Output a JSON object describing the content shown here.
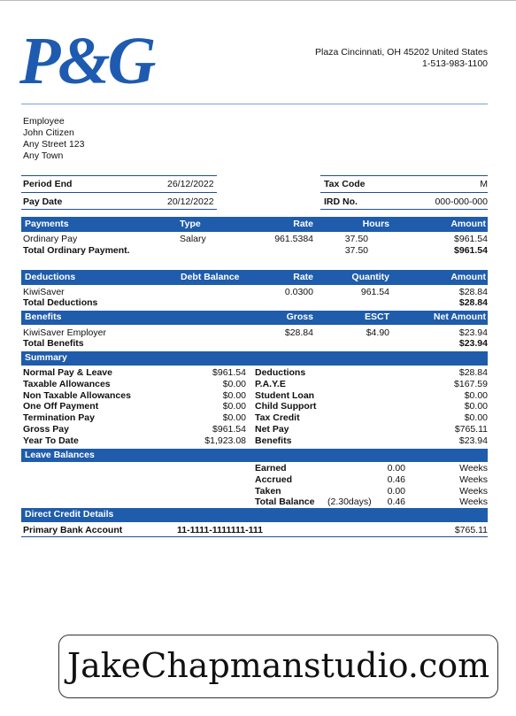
{
  "logo": "P&G",
  "company": {
    "address": "Plaza Cincinnati, OH 45202 United States",
    "phone": "1-513-983-1100"
  },
  "employee": [
    "Employee",
    "John Citizen",
    "Any Street 123",
    "Any Town"
  ],
  "period": {
    "period_end": {
      "label": "Period End",
      "value": "26/12/2022"
    },
    "tax_code": {
      "label": "Tax Code",
      "value": "M"
    },
    "pay_date": {
      "label": "Pay Date",
      "value": "20/12/2022"
    },
    "ird_no": {
      "label": "IRD No.",
      "value": "000-000-000"
    }
  },
  "payments": {
    "headers": [
      "Payments",
      "Type",
      "Rate",
      "Hours",
      "Amount"
    ],
    "row": {
      "name": "Ordinary Pay",
      "type": "Salary",
      "rate": "961.5384",
      "hours": "37.50",
      "amount": "$961.54"
    },
    "total": {
      "label": "Total Ordinary Payment.",
      "hours": "37.50",
      "amount": "$961.54"
    }
  },
  "deductions": {
    "headers": [
      "Deductions",
      "Debt Balance",
      "Rate",
      "Quantity",
      "Amount"
    ],
    "row": {
      "name": "KiwiSaver",
      "rate": "0.0300",
      "quantity": "961.54",
      "amount": "$28.84"
    },
    "total": {
      "label": "Total Deductions",
      "amount": "$28.84"
    }
  },
  "benefits": {
    "headers": [
      "Benefits",
      "Gross",
      "ESCT",
      "Net Amount"
    ],
    "row": {
      "name": "KiwiSaver Employer",
      "gross": "$28.84",
      "esct": "$4.90",
      "net": "$23.94"
    },
    "total": {
      "label": "Total Benefits",
      "amount": "$23.94"
    }
  },
  "summary": {
    "title": "Summary",
    "left": [
      [
        "Normal Pay & Leave",
        "$961.54"
      ],
      [
        "Taxable Allowances",
        "$0.00"
      ],
      [
        "Non Taxable Allowances",
        "$0.00"
      ],
      [
        "One Off Payment",
        "$0.00"
      ],
      [
        "Termination Pay",
        "$0.00"
      ],
      [
        "Gross Pay",
        "$961.54"
      ],
      [
        "Year To Date",
        "$1,923.08"
      ]
    ],
    "right": [
      [
        "Deductions",
        "$28.84"
      ],
      [
        "P.A.Y.E",
        "$167.59"
      ],
      [
        "Student Loan",
        "$0.00"
      ],
      [
        "Child Support",
        "$0.00"
      ],
      [
        "Tax Credit",
        "$0.00"
      ],
      [
        "Net Pay",
        "$765.11"
      ],
      [
        "Benefits",
        "$23.94"
      ]
    ]
  },
  "leave": {
    "title": "Leave Balances",
    "rows": [
      {
        "label": "Earned",
        "value": "0.00",
        "unit": "Weeks"
      },
      {
        "label": "Accrued",
        "value": "0.46",
        "unit": "Weeks"
      },
      {
        "label": "Taken",
        "value": "0.00",
        "unit": "Weeks"
      },
      {
        "label": "Total Balance",
        "note": "(2.30days)",
        "value": "0.46",
        "unit": "Weeks"
      }
    ]
  },
  "direct_credit": {
    "title": "Direct Credit Details",
    "label": "Primary Bank Account",
    "account": "11-1111-1111111-111",
    "amount": "$765.11"
  },
  "watermark": "JakeChapmanstudio.com"
}
